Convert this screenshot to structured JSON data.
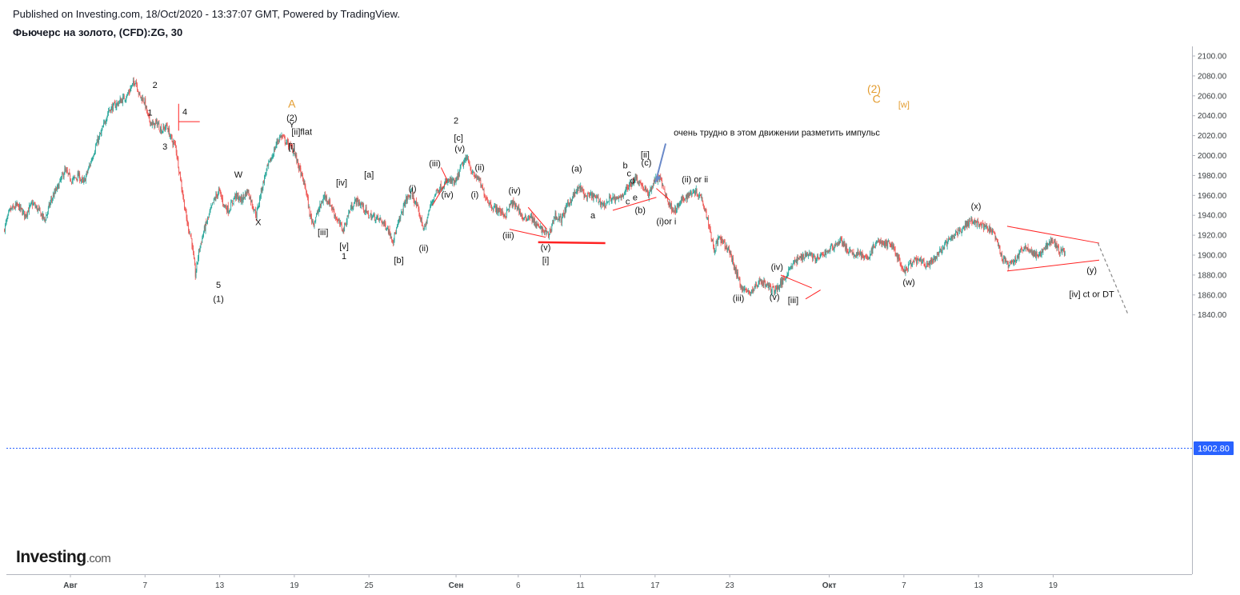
{
  "header": {
    "published": "Published on Investing.com, 18/Oct/2020 - 13:37:07 GMT, Powered by TradingView.",
    "title": "Фьючерс на золото, (CFD):ZG, 30"
  },
  "brand": {
    "name": "Investing",
    "domain": ".com"
  },
  "colors": {
    "up": "#26a69a",
    "down": "#ef5350",
    "annotation_line": "#ff2222",
    "arrow": "#6a89c9",
    "price_tag": "#2962ff",
    "orange": "#e39c2f"
  },
  "chart_data": {
    "type": "candlestick",
    "ylim": [
      1838,
      2105
    ],
    "y_ticks": [
      "2100.00",
      "2080.00",
      "2060.00",
      "2040.00",
      "2020.00",
      "2000.00",
      "1980.00",
      "1960.00",
      "1940.00",
      "1920.00",
      "1900.00",
      "1880.00",
      "1860.00",
      "1840.00"
    ],
    "x_ticks": [
      {
        "label": "Авг",
        "day": 0,
        "bold": true
      },
      {
        "label": "7",
        "day": 6
      },
      {
        "label": "13",
        "day": 12
      },
      {
        "label": "19",
        "day": 18
      },
      {
        "label": "25",
        "day": 24
      },
      {
        "label": "Сен",
        "day": 31,
        "bold": true
      },
      {
        "label": "6",
        "day": 36
      },
      {
        "label": "11",
        "day": 41
      },
      {
        "label": "17",
        "day": 47
      },
      {
        "label": "23",
        "day": 53
      },
      {
        "label": "Окт",
        "day": 61,
        "bold": true
      },
      {
        "label": "7",
        "day": 67
      },
      {
        "label": "13",
        "day": 73
      },
      {
        "label": "19",
        "day": 79
      }
    ],
    "last_price": 1902.8,
    "last_price_label": "1902.80",
    "price_path": [
      [
        -5.3,
        1925
      ],
      [
        -4.8,
        1945
      ],
      [
        -4.2,
        1950
      ],
      [
        -3.6,
        1940
      ],
      [
        -3.0,
        1952
      ],
      [
        -2.5,
        1945
      ],
      [
        -2.0,
        1935
      ],
      [
        -1.5,
        1955
      ],
      [
        -0.9,
        1970
      ],
      [
        -0.4,
        1985
      ],
      [
        0.2,
        1975
      ],
      [
        0.7,
        1980
      ],
      [
        1.1,
        1972
      ],
      [
        1.6,
        1990
      ],
      [
        2.1,
        2010
      ],
      [
        2.6,
        2025
      ],
      [
        3.1,
        2045
      ],
      [
        3.6,
        2050
      ],
      [
        4.1,
        2055
      ],
      [
        4.6,
        2060
      ],
      [
        5.0,
        2070
      ],
      [
        5.3,
        2076
      ],
      [
        5.6,
        2060
      ],
      [
        6.0,
        2055
      ],
      [
        6.3,
        2038
      ],
      [
        6.7,
        2030
      ],
      [
        7.0,
        2033
      ],
      [
        7.4,
        2025
      ],
      [
        7.8,
        2030
      ],
      [
        8.2,
        2015
      ],
      [
        8.5,
        2010
      ],
      [
        8.8,
        1985
      ],
      [
        9.1,
        1960
      ],
      [
        9.4,
        1935
      ],
      [
        9.8,
        1915
      ],
      [
        10.1,
        1880
      ],
      [
        10.4,
        1905
      ],
      [
        10.8,
        1925
      ],
      [
        11.2,
        1940
      ],
      [
        11.6,
        1955
      ],
      [
        12.0,
        1965
      ],
      [
        12.4,
        1950
      ],
      [
        12.8,
        1945
      ],
      [
        13.3,
        1960
      ],
      [
        13.8,
        1955
      ],
      [
        14.3,
        1965
      ],
      [
        14.7,
        1950
      ],
      [
        15.0,
        1940
      ],
      [
        15.4,
        1965
      ],
      [
        15.8,
        1985
      ],
      [
        16.3,
        2000
      ],
      [
        16.7,
        2015
      ],
      [
        17.0,
        2020
      ],
      [
        17.5,
        2012
      ],
      [
        18.0,
        2005
      ],
      [
        18.5,
        1985
      ],
      [
        19.0,
        1965
      ],
      [
        19.3,
        1940
      ],
      [
        19.6,
        1932
      ],
      [
        20.0,
        1945
      ],
      [
        20.5,
        1960
      ],
      [
        21.0,
        1950
      ],
      [
        21.5,
        1935
      ],
      [
        22.0,
        1925
      ],
      [
        22.5,
        1945
      ],
      [
        23.0,
        1955
      ],
      [
        23.5,
        1950
      ],
      [
        24.0,
        1940
      ],
      [
        24.5,
        1938
      ],
      [
        25.0,
        1935
      ],
      [
        25.5,
        1928
      ],
      [
        26.0,
        1915
      ],
      [
        26.5,
        1935
      ],
      [
        27.0,
        1955
      ],
      [
        27.5,
        1962
      ],
      [
        28.0,
        1945
      ],
      [
        28.5,
        1925
      ],
      [
        29.0,
        1950
      ],
      [
        29.5,
        1965
      ],
      [
        30.0,
        1970
      ],
      [
        30.5,
        1975
      ],
      [
        31.0,
        1972
      ],
      [
        31.5,
        1990
      ],
      [
        32.0,
        1998
      ],
      [
        32.4,
        1980
      ],
      [
        32.8,
        1978
      ],
      [
        33.2,
        1965
      ],
      [
        33.6,
        1955
      ],
      [
        34.0,
        1948
      ],
      [
        34.5,
        1945
      ],
      [
        35.0,
        1940
      ],
      [
        35.5,
        1952
      ],
      [
        36.0,
        1948
      ],
      [
        36.5,
        1935
      ],
      [
        37.0,
        1940
      ],
      [
        37.5,
        1930
      ],
      [
        38.0,
        1925
      ],
      [
        38.5,
        1920
      ],
      [
        39.0,
        1940
      ],
      [
        39.5,
        1935
      ],
      [
        40.0,
        1950
      ],
      [
        40.5,
        1960
      ],
      [
        41.0,
        1968
      ],
      [
        41.5,
        1958
      ],
      [
        42.0,
        1960
      ],
      [
        42.5,
        1955
      ],
      [
        43.0,
        1950
      ],
      [
        43.5,
        1958
      ],
      [
        44.0,
        1955
      ],
      [
        44.5,
        1962
      ],
      [
        45.0,
        1970
      ],
      [
        45.5,
        1978
      ],
      [
        46.0,
        1970
      ],
      [
        46.5,
        1960
      ],
      [
        47.0,
        1975
      ],
      [
        47.4,
        1978
      ],
      [
        47.8,
        1965
      ],
      [
        48.2,
        1950
      ],
      [
        48.7,
        1945
      ],
      [
        49.2,
        1955
      ],
      [
        49.7,
        1960
      ],
      [
        50.2,
        1965
      ],
      [
        50.7,
        1960
      ],
      [
        51.0,
        1950
      ],
      [
        51.4,
        1930
      ],
      [
        51.8,
        1905
      ],
      [
        52.2,
        1918
      ],
      [
        52.6,
        1910
      ],
      [
        53.0,
        1905
      ],
      [
        53.5,
        1885
      ],
      [
        54.0,
        1868
      ],
      [
        54.5,
        1862
      ],
      [
        55.0,
        1866
      ],
      [
        55.5,
        1875
      ],
      [
        56.0,
        1870
      ],
      [
        56.5,
        1865
      ],
      [
        57.0,
        1868
      ],
      [
        57.5,
        1878
      ],
      [
        58.0,
        1890
      ],
      [
        58.5,
        1895
      ],
      [
        59.0,
        1900
      ],
      [
        59.5,
        1902
      ],
      [
        60.0,
        1895
      ],
      [
        60.5,
        1900
      ],
      [
        61.0,
        1905
      ],
      [
        61.5,
        1910
      ],
      [
        62.0,
        1915
      ],
      [
        62.5,
        1905
      ],
      [
        63.0,
        1900
      ],
      [
        63.5,
        1903
      ],
      [
        64.0,
        1895
      ],
      [
        64.5,
        1905
      ],
      [
        65.0,
        1915
      ],
      [
        65.5,
        1910
      ],
      [
        66.0,
        1912
      ],
      [
        66.5,
        1900
      ],
      [
        67.0,
        1882
      ],
      [
        67.5,
        1890
      ],
      [
        68.0,
        1895
      ],
      [
        68.5,
        1893
      ],
      [
        69.0,
        1890
      ],
      [
        69.5,
        1895
      ],
      [
        70.0,
        1905
      ],
      [
        70.5,
        1912
      ],
      [
        71.0,
        1918
      ],
      [
        71.5,
        1925
      ],
      [
        72.0,
        1930
      ],
      [
        72.5,
        1935
      ],
      [
        73.0,
        1932
      ],
      [
        73.5,
        1928
      ],
      [
        74.0,
        1926
      ],
      [
        74.5,
        1915
      ],
      [
        75.0,
        1895
      ],
      [
        75.5,
        1890
      ],
      [
        76.0,
        1895
      ],
      [
        76.5,
        1905
      ],
      [
        77.0,
        1908
      ],
      [
        77.5,
        1900
      ],
      [
        78.0,
        1900
      ],
      [
        78.5,
        1910
      ],
      [
        79.0,
        1915
      ],
      [
        79.5,
        1905
      ],
      [
        80.0,
        1903
      ]
    ]
  },
  "annotations": [
    {
      "text": "2",
      "day": 6.8,
      "y": 2068,
      "c": "black"
    },
    {
      "text": "1",
      "day": 6.4,
      "y": 2040,
      "c": "black"
    },
    {
      "text": "4",
      "day": 9.2,
      "y": 2041,
      "c": "black"
    },
    {
      "text": "3",
      "day": 7.6,
      "y": 2006,
      "c": "black"
    },
    {
      "text": "5",
      "day": 11.9,
      "y": 1867,
      "c": "black"
    },
    {
      "text": "(1)",
      "day": 11.9,
      "y": 1853,
      "c": "black"
    },
    {
      "text": "A",
      "day": 17.8,
      "y": 2048,
      "c": "orange"
    },
    {
      "text": "(2)",
      "day": 17.8,
      "y": 2035,
      "c": "black"
    },
    {
      "text": "Y",
      "day": 17.8,
      "y": 2028,
      "c": "black"
    },
    {
      "text": "[ii]flat",
      "day": 18.6,
      "y": 2021,
      "c": "black"
    },
    {
      "text": "[i]",
      "day": 17.8,
      "y": 2006,
      "c": "black"
    },
    {
      "text": "W",
      "day": 13.5,
      "y": 1978,
      "c": "black"
    },
    {
      "text": "X",
      "day": 15.1,
      "y": 1930,
      "c": "black"
    },
    {
      "text": "[iv]",
      "day": 21.8,
      "y": 1970,
      "c": "black"
    },
    {
      "text": "[a]",
      "day": 24.0,
      "y": 1978,
      "c": "black"
    },
    {
      "text": "[iii]",
      "day": 20.3,
      "y": 1920,
      "c": "black"
    },
    {
      "text": "[v]",
      "day": 22.0,
      "y": 1906,
      "c": "black"
    },
    {
      "text": "1",
      "day": 22.0,
      "y": 1896,
      "c": "black"
    },
    {
      "text": "[b]",
      "day": 26.4,
      "y": 1892,
      "c": "black"
    },
    {
      "text": "(i)",
      "day": 27.5,
      "y": 1964,
      "c": "black"
    },
    {
      "text": "(ii)",
      "day": 28.4,
      "y": 1904,
      "c": "black"
    },
    {
      "text": "(iii)",
      "day": 29.3,
      "y": 1989,
      "c": "black"
    },
    {
      "text": "(iv)",
      "day": 30.3,
      "y": 1958,
      "c": "black"
    },
    {
      "text": "2",
      "day": 31.0,
      "y": 2032,
      "c": "black"
    },
    {
      "text": "[c]",
      "day": 31.2,
      "y": 2015,
      "c": "black"
    },
    {
      "text": "(v)",
      "day": 31.3,
      "y": 2004,
      "c": "black"
    },
    {
      "text": "(ii)",
      "day": 32.9,
      "y": 1985,
      "c": "black"
    },
    {
      "text": "(i)",
      "day": 32.5,
      "y": 1958,
      "c": "black"
    },
    {
      "text": "(iv)",
      "day": 35.7,
      "y": 1962,
      "c": "black"
    },
    {
      "text": "(iii)",
      "day": 35.2,
      "y": 1917,
      "c": "black"
    },
    {
      "text": "(v)",
      "day": 38.2,
      "y": 1905,
      "c": "black"
    },
    {
      "text": "[i]",
      "day": 38.2,
      "y": 1892,
      "c": "black"
    },
    {
      "text": "(a)",
      "day": 40.7,
      "y": 1984,
      "c": "black"
    },
    {
      "text": "a",
      "day": 42.0,
      "y": 1937,
      "c": "black"
    },
    {
      "text": "b",
      "day": 44.6,
      "y": 1987,
      "c": "black"
    },
    {
      "text": "c",
      "day": 44.9,
      "y": 1979,
      "c": "black"
    },
    {
      "text": "d",
      "day": 45.2,
      "y": 1972,
      "c": "black"
    },
    {
      "text": "e",
      "day": 45.4,
      "y": 1955,
      "c": "black"
    },
    {
      "text": "c",
      "day": 44.8,
      "y": 1951,
      "c": "black"
    },
    {
      "text": "(b)",
      "day": 45.8,
      "y": 1942,
      "c": "black"
    },
    {
      "text": "[ii]",
      "day": 46.2,
      "y": 1998,
      "c": "black"
    },
    {
      "text": "(c)",
      "day": 46.3,
      "y": 1990,
      "c": "black"
    },
    {
      "text": "(i)or i",
      "day": 47.9,
      "y": 1931,
      "c": "black"
    },
    {
      "text": "(ii) or ii",
      "day": 50.2,
      "y": 1973,
      "c": "black"
    },
    {
      "text": "очень трудно в этом движении разметить импульс",
      "day": 48.5,
      "y": 2020,
      "c": "black"
    },
    {
      "text": "(iii)",
      "day": 53.7,
      "y": 1854,
      "c": "black"
    },
    {
      "text": "(iv)",
      "day": 56.8,
      "y": 1885,
      "c": "black"
    },
    {
      "text": "(v)",
      "day": 56.6,
      "y": 1855,
      "c": "black"
    },
    {
      "text": "[iii]",
      "day": 58.1,
      "y": 1852,
      "c": "black"
    },
    {
      "text": "(w)",
      "day": 67.4,
      "y": 1870,
      "c": "black"
    },
    {
      "text": "(x)",
      "day": 72.8,
      "y": 1946,
      "c": "black"
    },
    {
      "text": "(y)",
      "day": 82.1,
      "y": 1882,
      "c": "black"
    },
    {
      "text": "[iv] ct or DT",
      "day": 82.1,
      "y": 1858,
      "c": "black"
    },
    {
      "text": "(2)",
      "day": 64.6,
      "y": 2063,
      "c": "orange"
    },
    {
      "text": "C",
      "day": 64.8,
      "y": 2053,
      "c": "orange"
    },
    {
      "text": "[w]",
      "day": 67.0,
      "y": 2048,
      "c": "orange-small"
    }
  ]
}
